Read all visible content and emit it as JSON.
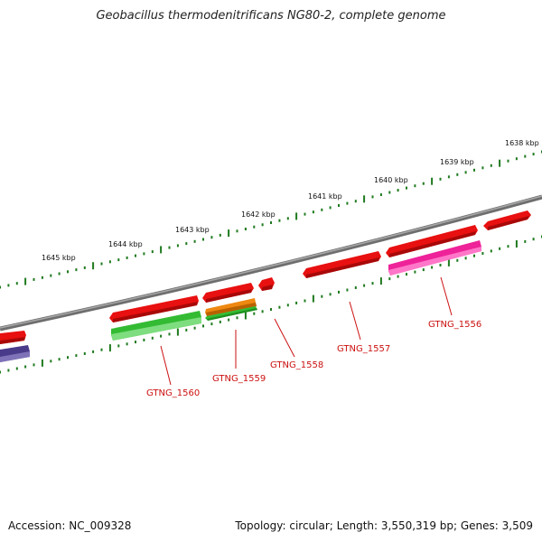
{
  "title": "Geobacillus thermodenitrificans NG80-2, complete genome",
  "footer": {
    "accession": "Accession: NC_009328",
    "topology": "Topology: circular; Length: 3,550,319 bp; Genes: 3,509"
  },
  "scale": {
    "unit": "kbp",
    "labels": [
      "1638 kbp",
      "1639 kbp",
      "1640 kbp",
      "1641 kbp",
      "1642 kbp",
      "1643 kbp",
      "1644 kbp",
      "1645 kbp"
    ]
  },
  "colors": {
    "backbone": "#8a8a8a",
    "tick": "#1f7a1f",
    "label": "#cc1111",
    "red_feature": "#e81010",
    "green_feature": "#33bb33",
    "orange_feature": "#ee8811",
    "magenta_feature": "#ee2299",
    "purple_feature": "#4a3a8a"
  },
  "gene_labels": [
    "GTNG_1556",
    "GTNG_1557",
    "GTNG_1558",
    "GTNG_1559",
    "GTNG_1560"
  ]
}
